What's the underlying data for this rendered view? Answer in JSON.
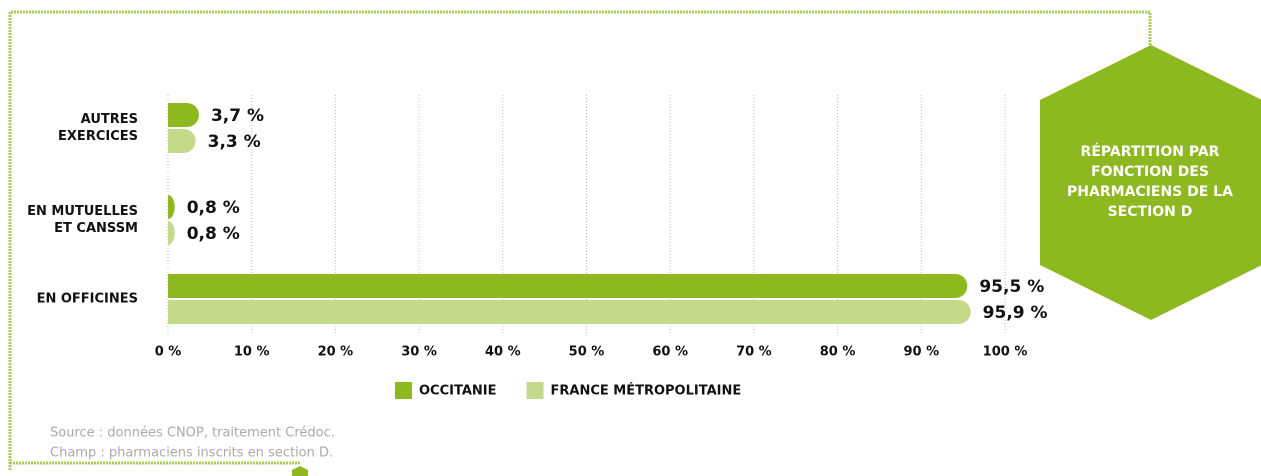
{
  "chart_data": {
    "type": "hbar",
    "title": "RÉPARTITION PAR FONCTION DES PHARMACIENS DE LA SECTION D",
    "categories": [
      "AUTRES EXERCICES",
      "EN MUTUELLES ET CANSSM",
      "EN OFFICINES"
    ],
    "series": [
      {
        "name": "OCCITANIE",
        "color": "#8db820",
        "values": [
          3.7,
          0.8,
          95.5
        ],
        "value_labels": [
          "3,7 %",
          "0,8 %",
          "95,5 %"
        ]
      },
      {
        "name": "FRANCE MÉTROPOLITAINE",
        "color": "#c5d98a",
        "values": [
          3.3,
          0.8,
          95.9
        ],
        "value_labels": [
          "3,3 %",
          "0,8 %",
          "95,9 %"
        ]
      }
    ],
    "xlim": [
      0,
      100
    ],
    "xticks": [
      {
        "value": 0,
        "label": "0 %"
      },
      {
        "value": 10,
        "label": "10 %"
      },
      {
        "value": 20,
        "label": "20 %"
      },
      {
        "value": 30,
        "label": "30 %"
      },
      {
        "value": 40,
        "label": "40 %"
      },
      {
        "value": 50,
        "label": "50 %"
      },
      {
        "value": 60,
        "label": "60 %"
      },
      {
        "value": 70,
        "label": "70 %"
      },
      {
        "value": 80,
        "label": "80 %"
      },
      {
        "value": 90,
        "label": "90 %"
      },
      {
        "value": 100,
        "label": "100 %"
      }
    ],
    "grid": true,
    "notes": [
      "Source : données CNOP, traitement Crédoc.",
      "Champ : pharmaciens inscrits en section D."
    ]
  }
}
